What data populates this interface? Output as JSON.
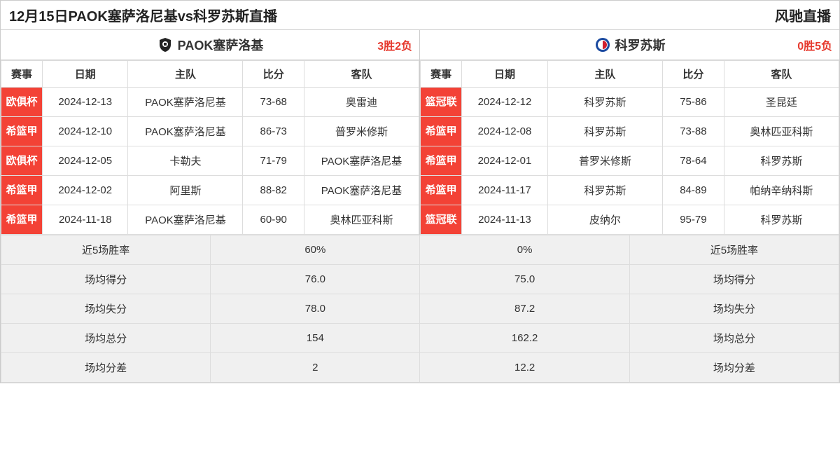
{
  "header": {
    "title": "12月15日PAOK塞萨洛尼基vs科罗苏斯直播",
    "site": "风驰直播"
  },
  "colors": {
    "comp_bg": "#f34236",
    "comp_fg": "#ffffff",
    "record_fg": "#e63a2e",
    "border": "#dddddd",
    "summary_bg": "#f0f0f0"
  },
  "columns": {
    "comp": "赛事",
    "date": "日期",
    "home": "主队",
    "score": "比分",
    "away": "客队"
  },
  "left": {
    "team": "PAOK塞萨洛基",
    "record": "3胜2负",
    "rows": [
      {
        "comp": "欧俱杯",
        "date": "2024-12-13",
        "home": "PAOK塞萨洛尼基",
        "score": "73-68",
        "away": "奥雷迪"
      },
      {
        "comp": "希篮甲",
        "date": "2024-12-10",
        "home": "PAOK塞萨洛尼基",
        "score": "86-73",
        "away": "普罗米修斯"
      },
      {
        "comp": "欧俱杯",
        "date": "2024-12-05",
        "home": "卡勒夫",
        "score": "71-79",
        "away": "PAOK塞萨洛尼基"
      },
      {
        "comp": "希篮甲",
        "date": "2024-12-02",
        "home": "阿里斯",
        "score": "88-82",
        "away": "PAOK塞萨洛尼基"
      },
      {
        "comp": "希篮甲",
        "date": "2024-11-18",
        "home": "PAOK塞萨洛尼基",
        "score": "60-90",
        "away": "奥林匹亚科斯"
      }
    ]
  },
  "right": {
    "team": "科罗苏斯",
    "record": "0胜5负",
    "rows": [
      {
        "comp": "篮冠联",
        "date": "2024-12-12",
        "home": "科罗苏斯",
        "score": "75-86",
        "away": "圣昆廷"
      },
      {
        "comp": "希篮甲",
        "date": "2024-12-08",
        "home": "科罗苏斯",
        "score": "73-88",
        "away": "奥林匹亚科斯"
      },
      {
        "comp": "希篮甲",
        "date": "2024-12-01",
        "home": "普罗米修斯",
        "score": "78-64",
        "away": "科罗苏斯"
      },
      {
        "comp": "希篮甲",
        "date": "2024-11-17",
        "home": "科罗苏斯",
        "score": "84-89",
        "away": "帕纳辛纳科斯"
      },
      {
        "comp": "篮冠联",
        "date": "2024-11-13",
        "home": "皮纳尔",
        "score": "95-79",
        "away": "科罗苏斯"
      }
    ]
  },
  "summary": {
    "labels": {
      "winrate": "近5场胜率",
      "ppg": "场均得分",
      "papg": "场均失分",
      "total": "场均总分",
      "diff": "场均分差"
    },
    "left": {
      "winrate": "60%",
      "ppg": "76.0",
      "papg": "78.0",
      "total": "154",
      "diff": "2"
    },
    "right": {
      "winrate": "0%",
      "ppg": "75.0",
      "papg": "87.2",
      "total": "162.2",
      "diff": "12.2"
    }
  }
}
